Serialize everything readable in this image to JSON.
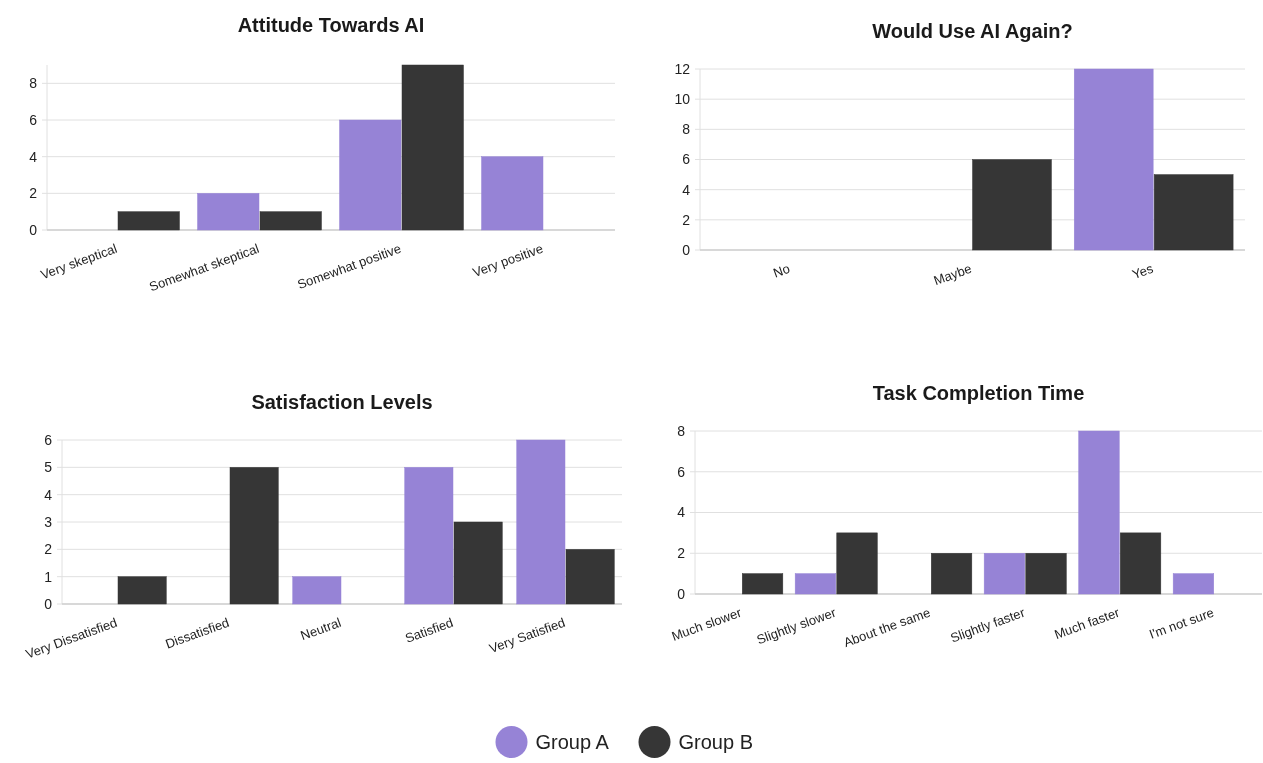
{
  "chart_data": [
    {
      "type": "bar",
      "title": "Attitude Towards AI",
      "categories": [
        "Very skeptical",
        "Somewhat skeptical",
        "Somewhat positive",
        "Very positive"
      ],
      "series": [
        {
          "name": "Group A",
          "color": "#9683d6",
          "values": [
            0,
            2,
            6,
            4
          ]
        },
        {
          "name": "Group B",
          "color": "#363636",
          "values": [
            1,
            1,
            9,
            0
          ]
        }
      ],
      "ylim": [
        0,
        9
      ],
      "yticks": [
        0,
        2,
        4,
        6,
        8
      ],
      "grid": "y",
      "legend": "bottom"
    },
    {
      "type": "bar",
      "title": "Would Use AI Again?",
      "categories": [
        "No",
        "Maybe",
        "Yes"
      ],
      "series": [
        {
          "color": "#9683d6",
          "values": [
            0,
            0,
            12
          ]
        },
        {
          "color": "#363636",
          "values": [
            0,
            6,
            5
          ]
        }
      ],
      "ylim": [
        0,
        12
      ],
      "yticks": [
        0,
        2,
        4,
        6,
        8,
        10,
        12
      ],
      "grid": "y"
    },
    {
      "type": "bar",
      "title": "Satisfaction Levels",
      "categories": [
        "Very Dissatisfied",
        "Dissatisfied",
        "Neutral",
        "Satisfied",
        "Very Satisfied"
      ],
      "series": [
        {
          "color": "#9683d6",
          "values": [
            0,
            0,
            1,
            5,
            6
          ]
        },
        {
          "color": "#363636",
          "values": [
            1,
            5,
            0,
            3,
            2
          ]
        }
      ],
      "ylim": [
        0,
        6
      ],
      "yticks": [
        0,
        1,
        2,
        3,
        4,
        5,
        6
      ],
      "grid": "y"
    },
    {
      "type": "bar",
      "title": "Task Completion Time",
      "categories": [
        "Much slower",
        "Slightly slower",
        "About the same",
        "Slightly faster",
        "Much faster",
        "I'm not sure"
      ],
      "series": [
        {
          "color": "#9683d6",
          "values": [
            0,
            1,
            0,
            2,
            8,
            1
          ]
        },
        {
          "color": "#363636",
          "values": [
            1,
            3,
            2,
            2,
            3,
            0
          ]
        }
      ],
      "ylim": [
        0,
        8
      ],
      "yticks": [
        0,
        2,
        4,
        6,
        8
      ],
      "grid": "y"
    }
  ]
}
